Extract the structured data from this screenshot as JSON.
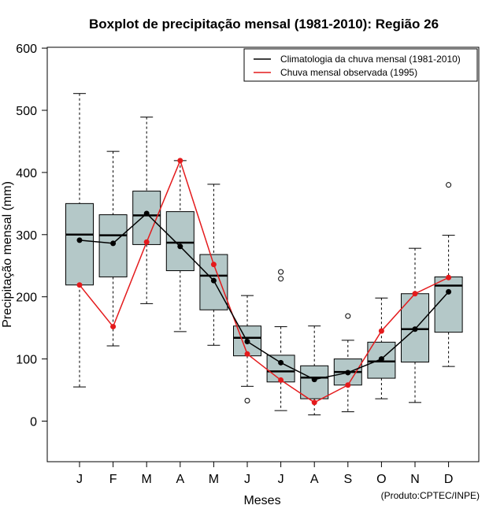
{
  "chart_data": {
    "type": "boxplot",
    "title": "Boxplot de precipitação mensal (1981-2010): Região 26",
    "xlabel": "Meses",
    "ylabel": "Precipitação mensal (mm)",
    "ylim": [
      -65,
      605
    ],
    "yticks": [
      0,
      100,
      200,
      300,
      400,
      500,
      600
    ],
    "categories": [
      "J",
      "F",
      "M",
      "A",
      "M",
      "J",
      "J",
      "A",
      "S",
      "O",
      "N",
      "D"
    ],
    "boxes": [
      {
        "whisker_low": 55,
        "q1": 219,
        "median": 300,
        "q3": 350,
        "whisker_high": 527,
        "outliers": []
      },
      {
        "whisker_low": 121,
        "q1": 232,
        "median": 299,
        "q3": 332,
        "whisker_high": 434,
        "outliers": []
      },
      {
        "whisker_low": 189,
        "q1": 284,
        "median": 331,
        "q3": 370,
        "whisker_high": 489,
        "outliers": []
      },
      {
        "whisker_low": 144,
        "q1": 242,
        "median": 287,
        "q3": 337,
        "whisker_high": 419,
        "outliers": []
      },
      {
        "whisker_low": 122,
        "q1": 179,
        "median": 234,
        "q3": 268,
        "whisker_high": 381,
        "outliers": []
      },
      {
        "whisker_low": 56,
        "q1": 105,
        "median": 134,
        "q3": 153,
        "whisker_high": 202,
        "outliers": [
          33
        ]
      },
      {
        "whisker_low": 17,
        "q1": 63,
        "median": 80,
        "q3": 106,
        "whisker_high": 152,
        "outliers": [
          229,
          240
        ]
      },
      {
        "whisker_low": 10,
        "q1": 36,
        "median": 70,
        "q3": 89,
        "whisker_high": 153,
        "outliers": []
      },
      {
        "whisker_low": 15,
        "q1": 58,
        "median": 79,
        "q3": 100,
        "whisker_high": 130,
        "outliers": [
          169
        ]
      },
      {
        "whisker_low": 36,
        "q1": 69,
        "median": 96,
        "q3": 127,
        "whisker_high": 198,
        "outliers": []
      },
      {
        "whisker_low": 30,
        "q1": 95,
        "median": 148,
        "q3": 205,
        "whisker_high": 278,
        "outliers": []
      },
      {
        "whisker_low": 88,
        "q1": 143,
        "median": 218,
        "q3": 232,
        "whisker_high": 299,
        "outliers": [
          380
        ]
      }
    ],
    "series": [
      {
        "name": "Climatologia da chuva mensal (1981-2010)",
        "color": "#000000",
        "values": [
          291,
          286,
          334,
          281,
          226,
          128,
          94,
          67,
          78,
          100,
          148,
          208
        ]
      },
      {
        "name": "Chuva mensal observada (1995)",
        "color": "#e41a1c",
        "values": [
          219,
          152,
          288,
          419,
          252,
          108,
          66,
          30,
          58,
          145,
          205,
          231
        ]
      }
    ],
    "legend_position": "top-right",
    "box_color": "#b4c8c8",
    "credit": "(Produto:CPTEC/INPE)"
  }
}
